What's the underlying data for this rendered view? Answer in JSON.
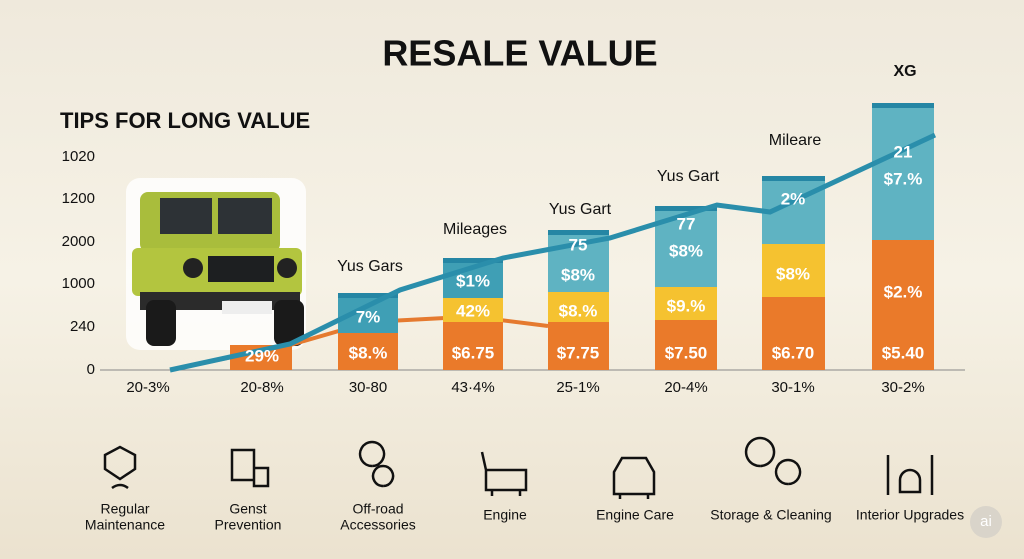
{
  "title": "RESALE VALUE",
  "subtitle": "TIPS FOR LONG VALUE",
  "y_labels": [
    1020,
    1200,
    2000,
    1000,
    240,
    0
  ],
  "columns": [
    {
      "label": "20-3%"
    },
    {
      "label": "20-8%",
      "segments": [
        {
          "color": "#ea7a2a",
          "labels": [
            "29%"
          ]
        }
      ]
    },
    {
      "label": "30-80",
      "heading": "Yus Gars",
      "segments": [
        {
          "color": "#ea7a2a",
          "labels": [
            "$8.%"
          ]
        },
        {
          "color": "#3f9fb5",
          "labels": [
            "7%"
          ]
        }
      ]
    },
    {
      "label": "43·4%",
      "heading": "Mileages",
      "segments": [
        {
          "color": "#ea7a2a",
          "labels": [
            "$6.75"
          ]
        },
        {
          "color": "#f5c230",
          "labels": [
            "42%"
          ]
        },
        {
          "color": "#3f9fb5",
          "labels": [
            "$1%"
          ]
        }
      ]
    },
    {
      "label": "25-1%",
      "heading": "Yus Gart",
      "segments": [
        {
          "color": "#ea7a2a",
          "labels": [
            "$7.75"
          ]
        },
        {
          "color": "#f5c230",
          "labels": [
            "$8.%"
          ]
        },
        {
          "color": "#5fb3c2",
          "labels": [
            "$8%",
            "75"
          ]
        }
      ]
    },
    {
      "label": "20-4%",
      "heading": "Yus Gart",
      "segments": [
        {
          "color": "#ea7a2a",
          "labels": [
            "$7.50"
          ]
        },
        {
          "color": "#f5c230",
          "labels": [
            "$9.%"
          ]
        },
        {
          "color": "#5fb3c2",
          "labels": [
            "$8%",
            "77"
          ]
        }
      ]
    },
    {
      "label": "30-1%",
      "heading": "Mileare",
      "segments": [
        {
          "color": "#ea7a2a",
          "labels": [
            "$6.70"
          ]
        },
        {
          "color": "#f5c230",
          "labels": [
            "$8%"
          ]
        },
        {
          "color": "#5fb3c2",
          "labels": [
            "2%"
          ]
        }
      ]
    },
    {
      "label": "30-2%",
      "heading": "XG",
      "segments": [
        {
          "color": "#ea7a2a",
          "labels": [
            "$5.40",
            "$2.%"
          ]
        },
        {
          "color": "#5fb3c2",
          "labels": [
            "$7.%",
            "21"
          ]
        }
      ]
    }
  ],
  "tips": [
    [
      "Regular",
      "Maintenance"
    ],
    [
      "Genst",
      "Prevention"
    ],
    [
      "Off-road",
      "Accessories"
    ],
    [
      "Engine"
    ],
    [
      "Engine Care"
    ],
    [
      "Storage & Cleaning"
    ],
    [
      "Interior Upgrades"
    ]
  ],
  "badge": "ai"
}
